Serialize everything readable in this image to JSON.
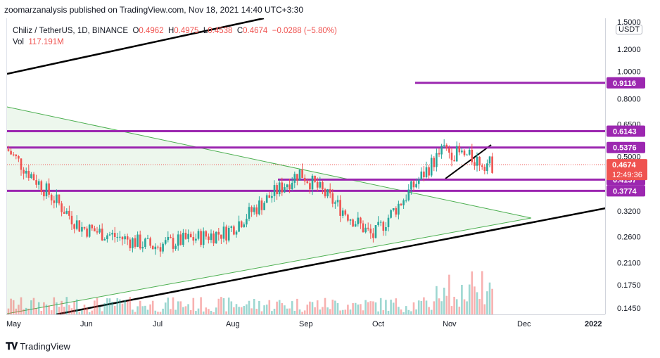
{
  "publisher": "zoomarzanalysis published on TradingView.com, Nov 18, 2021 14:40 UTC+3:30",
  "legend": {
    "symbol": "Chiliz / TetherUS, 1D, BINANCE",
    "open_label": "O",
    "open": "0.4962",
    "high_label": "H",
    "high": "0.4975",
    "low_label": "L",
    "low": "0.4538",
    "close_label": "C",
    "close": "0.4674",
    "change": "−0.0288 (−5.80%)",
    "vol_label": "Vol",
    "vol": "117.191M"
  },
  "currency": "USDT",
  "footer": {
    "brand": "TradingView"
  },
  "colors": {
    "up": "#26a69a",
    "down": "#ef5350",
    "level": "#9c27b0",
    "triangle": "#4caf50",
    "trend": "#000000"
  },
  "chart_data": {
    "type": "candlestick",
    "title": "Chiliz / TetherUS, 1D, BINANCE",
    "y_scale": "log",
    "ylim": [
      0.14,
      1.6
    ],
    "price_ticks": [
      "1.5000",
      "1.2000",
      "1.0000",
      "0.8000",
      "0.6500",
      "0.5000",
      "0.3200",
      "0.2600",
      "0.2100",
      "0.1750",
      "0.1450"
    ],
    "time_ticks": [
      "May",
      "Jun",
      "Jul",
      "Aug",
      "Sep",
      "Oct",
      "Nov",
      "Dec",
      "2022"
    ],
    "horizontal_levels": [
      0.9116,
      0.6143,
      0.5376,
      0.4137,
      0.3774
    ],
    "level_labels": [
      "0.9116",
      "0.6143",
      "0.5376",
      "0.4137",
      "0.3774"
    ],
    "last_price": "0.4674",
    "countdown": "12:49:36",
    "monthly_closes": [
      {
        "month": "May",
        "value": 0.53
      },
      {
        "month": "Jun",
        "value": 0.28
      },
      {
        "month": "Jul",
        "value": 0.24
      },
      {
        "month": "Aug",
        "value": 0.27
      },
      {
        "month": "Sep",
        "value": 0.44
      },
      {
        "month": "Oct",
        "value": 0.26
      },
      {
        "month": "Nov",
        "value": 0.53
      },
      {
        "month": "Nov 18",
        "value": 0.4674
      }
    ]
  }
}
